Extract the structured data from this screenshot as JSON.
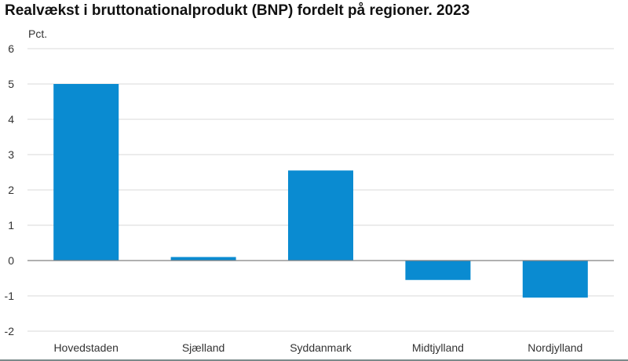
{
  "chart_data": {
    "type": "bar",
    "title": "Realvækst i bruttonationalprodukt (BNP) fordelt på regioner. 2023",
    "ylabel": "Pct.",
    "xlabel": "",
    "categories": [
      "Hovedstaden",
      "Sjælland",
      "Syddanmark",
      "Midtjylland",
      "Nordjylland"
    ],
    "values": [
      5.0,
      0.1,
      2.55,
      -0.55,
      -1.05
    ],
    "yticks": [
      "-2",
      "-1",
      "0",
      "1",
      "2",
      "3",
      "4",
      "5",
      "6"
    ],
    "ylim": [
      -2,
      6
    ],
    "grid": true,
    "legend": "none",
    "bar_color": "#0a8bd1",
    "grid_color": "#d9d9d9",
    "zero_line_color": "#808080"
  }
}
